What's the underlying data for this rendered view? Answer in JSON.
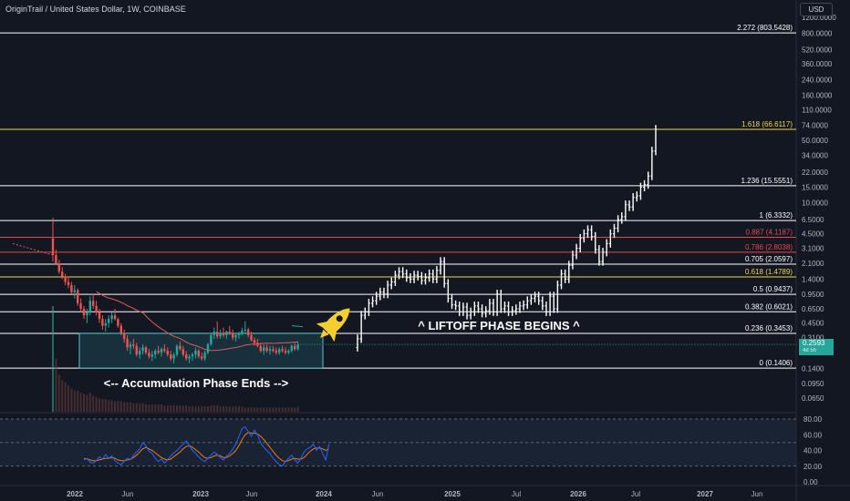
{
  "header": {
    "title": "OriginTrail / United States Dollar, 1W, COINBASE",
    "currency_button": "USD"
  },
  "price_tag": {
    "price": "0.2593",
    "countdown": "4d 5h"
  },
  "colors": {
    "background": "#131722",
    "white_line": "#ffffff",
    "yellow_line": "#f0d64b",
    "red_line": "#e5484d",
    "accumulation_box_fill": "#1b3a45",
    "accumulation_box_border": "#5ec8c8",
    "rsi_band_fill": "#1c2637",
    "rsi_line": "#2962ff",
    "rsi_ma": "#f57c00",
    "up_candle": "#26a69a",
    "down_candle": "#ef5350",
    "rocket": "#f5cf2e"
  },
  "chart_data": {
    "type": "candlestick",
    "scale": "log",
    "interval": "1W",
    "x_axis_labels": [
      "2022",
      "Jun",
      "2023",
      "Jun",
      "2024",
      "Jun",
      "2025",
      "Jul",
      "2026",
      "Jul",
      "2027",
      "Jun"
    ],
    "y_axis_labels": [
      "1200.0000",
      "800.0000",
      "520.0000",
      "360.0000",
      "240.0000",
      "160.0000",
      "110.0000",
      "74.0000",
      "50.0000",
      "34.0000",
      "22.0000",
      "15.0000",
      "10.0000",
      "6.5000",
      "4.5000",
      "3.1000",
      "2.1000",
      "1.4000",
      "0.9500",
      "0.6500",
      "0.4500",
      "0.3100",
      "0.2100",
      "0.1400",
      "0.0950",
      "0.0650"
    ],
    "rsi_axis_labels": [
      "80.00",
      "60.00",
      "40.00",
      "20.00",
      "0.00"
    ],
    "fib_levels": [
      {
        "label": "2.272 (803.5428)",
        "value": 803.5428,
        "color": "white"
      },
      {
        "label": "1.618 (66.6117)",
        "value": 66.6117,
        "color": "yellow"
      },
      {
        "label": "1.236 (15.5551)",
        "value": 15.5551,
        "color": "white"
      },
      {
        "label": "1 (6.3332)",
        "value": 6.3332,
        "color": "white"
      },
      {
        "label": "0.887 (4.1187)",
        "value": 4.1187,
        "color": "red"
      },
      {
        "label": "0.786 (2.8038)",
        "value": 2.8038,
        "color": "red"
      },
      {
        "label": "0.705 (2.0597)",
        "value": 2.0597,
        "color": "white"
      },
      {
        "label": "0.618 (1.4789)",
        "value": 1.4789,
        "color": "yellow"
      },
      {
        "label": "0.5 (0.9437)",
        "value": 0.9437,
        "color": "white"
      },
      {
        "label": "0.382 (0.6021)",
        "value": 0.6021,
        "color": "white"
      },
      {
        "label": "0.236 (0.3453)",
        "value": 0.3453,
        "color": "white"
      },
      {
        "label": "0 (0.1406)",
        "value": 0.1406,
        "color": "white"
      }
    ],
    "annotations": {
      "accumulation": "<-- Accumulation Phase Ends -->",
      "liftoff": "^ LIFTOFF PHASE BEGINS ^"
    },
    "accumulation_box": {
      "price_low": 0.1406,
      "price_high": 0.3453
    },
    "historical_candles": [
      [
        4.0,
        6.8,
        2.2,
        2.6
      ],
      [
        2.6,
        3.0,
        2.0,
        2.1
      ],
      [
        2.1,
        2.3,
        1.6,
        1.7
      ],
      [
        1.7,
        1.9,
        1.4,
        1.5
      ],
      [
        1.5,
        1.6,
        1.2,
        1.3
      ],
      [
        1.3,
        1.5,
        1.1,
        1.2
      ],
      [
        1.2,
        1.3,
        0.95,
        1.0
      ],
      [
        1.0,
        1.2,
        0.85,
        1.05
      ],
      [
        1.05,
        1.1,
        0.7,
        0.75
      ],
      [
        0.75,
        0.85,
        0.6,
        0.65
      ],
      [
        0.65,
        0.7,
        0.5,
        0.55
      ],
      [
        0.55,
        0.65,
        0.45,
        0.6
      ],
      [
        0.6,
        0.9,
        0.55,
        0.8
      ],
      [
        0.8,
        0.95,
        0.65,
        0.7
      ],
      [
        0.7,
        0.8,
        0.55,
        0.6
      ],
      [
        0.6,
        0.65,
        0.45,
        0.5
      ],
      [
        0.5,
        0.55,
        0.38,
        0.42
      ],
      [
        0.42,
        0.5,
        0.36,
        0.45
      ],
      [
        0.45,
        0.55,
        0.4,
        0.5
      ],
      [
        0.5,
        0.6,
        0.45,
        0.55
      ],
      [
        0.55,
        0.65,
        0.48,
        0.5
      ],
      [
        0.5,
        0.52,
        0.4,
        0.42
      ],
      [
        0.42,
        0.45,
        0.33,
        0.35
      ],
      [
        0.35,
        0.38,
        0.27,
        0.3
      ],
      [
        0.3,
        0.33,
        0.22,
        0.24
      ],
      [
        0.24,
        0.28,
        0.2,
        0.26
      ],
      [
        0.26,
        0.3,
        0.23,
        0.25
      ],
      [
        0.25,
        0.27,
        0.19,
        0.2
      ],
      [
        0.2,
        0.24,
        0.18,
        0.22
      ],
      [
        0.22,
        0.26,
        0.2,
        0.24
      ],
      [
        0.24,
        0.25,
        0.2,
        0.21
      ],
      [
        0.21,
        0.23,
        0.18,
        0.19
      ],
      [
        0.19,
        0.22,
        0.17,
        0.2
      ],
      [
        0.2,
        0.23,
        0.18,
        0.22
      ],
      [
        0.22,
        0.25,
        0.2,
        0.21
      ],
      [
        0.21,
        0.24,
        0.19,
        0.23
      ],
      [
        0.23,
        0.26,
        0.21,
        0.22
      ],
      [
        0.22,
        0.24,
        0.19,
        0.2
      ],
      [
        0.2,
        0.22,
        0.17,
        0.18
      ],
      [
        0.18,
        0.21,
        0.16,
        0.2
      ],
      [
        0.2,
        0.26,
        0.19,
        0.25
      ],
      [
        0.25,
        0.28,
        0.22,
        0.23
      ],
      [
        0.23,
        0.25,
        0.19,
        0.2
      ],
      [
        0.2,
        0.22,
        0.17,
        0.18
      ],
      [
        0.18,
        0.2,
        0.16,
        0.19
      ],
      [
        0.19,
        0.21,
        0.17,
        0.2
      ],
      [
        0.2,
        0.24,
        0.18,
        0.22
      ],
      [
        0.22,
        0.23,
        0.18,
        0.19
      ],
      [
        0.19,
        0.21,
        0.17,
        0.18
      ],
      [
        0.18,
        0.22,
        0.17,
        0.21
      ],
      [
        0.21,
        0.27,
        0.2,
        0.26
      ],
      [
        0.26,
        0.34,
        0.25,
        0.33
      ],
      [
        0.33,
        0.4,
        0.3,
        0.36
      ],
      [
        0.36,
        0.47,
        0.3,
        0.32
      ],
      [
        0.32,
        0.38,
        0.3,
        0.35
      ],
      [
        0.35,
        0.4,
        0.31,
        0.33
      ],
      [
        0.33,
        0.37,
        0.3,
        0.36
      ],
      [
        0.36,
        0.42,
        0.33,
        0.34
      ],
      [
        0.34,
        0.38,
        0.29,
        0.31
      ],
      [
        0.31,
        0.35,
        0.28,
        0.33
      ],
      [
        0.33,
        0.36,
        0.3,
        0.35
      ],
      [
        0.35,
        0.4,
        0.33,
        0.37
      ],
      [
        0.37,
        0.47,
        0.34,
        0.38
      ],
      [
        0.38,
        0.4,
        0.31,
        0.33
      ],
      [
        0.33,
        0.36,
        0.28,
        0.29
      ],
      [
        0.29,
        0.31,
        0.25,
        0.27
      ],
      [
        0.27,
        0.3,
        0.24,
        0.25
      ],
      [
        0.25,
        0.27,
        0.21,
        0.22
      ],
      [
        0.22,
        0.26,
        0.2,
        0.24
      ],
      [
        0.24,
        0.26,
        0.21,
        0.22
      ],
      [
        0.22,
        0.25,
        0.2,
        0.23
      ],
      [
        0.23,
        0.25,
        0.21,
        0.22
      ],
      [
        0.22,
        0.24,
        0.2,
        0.21
      ],
      [
        0.21,
        0.24,
        0.2,
        0.23
      ],
      [
        0.23,
        0.25,
        0.21,
        0.22
      ],
      [
        0.22,
        0.24,
        0.2,
        0.21
      ],
      [
        0.21,
        0.23,
        0.2,
        0.22
      ],
      [
        0.22,
        0.26,
        0.21,
        0.25
      ],
      [
        0.25,
        0.27,
        0.22,
        0.23
      ],
      [
        0.23,
        0.28,
        0.22,
        0.2593
      ]
    ],
    "projected_path": [
      0.3,
      0.55,
      0.6,
      0.75,
      0.8,
      0.9,
      1.0,
      0.95,
      1.2,
      1.3,
      1.55,
      1.7,
      1.6,
      1.45,
      1.4,
      1.55,
      1.5,
      1.35,
      1.45,
      1.6,
      1.4,
      1.75,
      2.2,
      1.25,
      0.85,
      0.72,
      0.7,
      0.6,
      0.68,
      0.55,
      0.6,
      0.7,
      0.65,
      0.58,
      0.62,
      0.75,
      0.6,
      0.95,
      0.65,
      0.7,
      0.6,
      0.62,
      0.65,
      0.7,
      0.72,
      0.8,
      0.85,
      0.9,
      0.8,
      0.7,
      0.6,
      0.9,
      0.65,
      1.2,
      1.6,
      1.4,
      2.0,
      2.6,
      3.1,
      4.0,
      4.5,
      5.0,
      4.2,
      3.0,
      2.2,
      2.8,
      3.5,
      4.5,
      5.2,
      6.5,
      7.0,
      9.5,
      9.0,
      11.5,
      12.0,
      15.0,
      16.0,
      20.0,
      38.0,
      66.6
    ],
    "rsi_values": [
      28,
      30,
      25,
      24,
      27,
      32,
      29,
      35,
      30,
      33,
      27,
      24,
      22,
      26,
      30,
      28,
      34,
      38,
      42,
      50,
      46,
      39,
      36,
      30,
      26,
      29,
      24,
      28,
      33,
      37,
      40,
      44,
      48,
      52,
      46,
      40,
      36,
      32,
      28,
      26,
      30,
      34,
      38,
      35,
      31,
      28,
      33,
      36,
      42,
      48,
      58,
      68,
      70,
      64,
      58,
      66,
      60,
      50,
      44,
      40,
      36,
      30,
      26,
      22,
      20,
      26,
      30,
      34,
      28,
      24,
      30,
      38,
      42,
      44,
      48,
      40,
      45,
      36,
      28,
      48
    ],
    "rsi_ma_values": [
      30,
      29,
      28,
      27,
      27,
      28,
      29,
      30,
      30,
      31,
      30,
      28,
      27,
      27,
      28,
      29,
      31,
      34,
      38,
      42,
      44,
      42,
      40,
      37,
      34,
      31,
      29,
      28,
      29,
      32,
      35,
      38,
      42,
      45,
      46,
      44,
      41,
      38,
      34,
      31,
      30,
      31,
      33,
      34,
      33,
      31,
      31,
      33,
      36,
      40,
      46,
      54,
      60,
      63,
      62,
      62,
      61,
      58,
      54,
      49,
      44,
      39,
      34,
      30,
      27,
      26,
      27,
      29,
      30,
      29,
      29,
      31,
      35,
      39,
      42,
      43,
      43,
      42,
      40,
      42
    ],
    "volume_relative": [
      1.0,
      0.5,
      0.35,
      0.3,
      0.28,
      0.25,
      0.22,
      0.2,
      0.2,
      0.18,
      0.17,
      0.16,
      0.18,
      0.15,
      0.14,
      0.13,
      0.12,
      0.12,
      0.11,
      0.11,
      0.1,
      0.1,
      0.1,
      0.09,
      0.09,
      0.09,
      0.08,
      0.08,
      0.08,
      0.08,
      0.07,
      0.07,
      0.07,
      0.07,
      0.07,
      0.07,
      0.06,
      0.06,
      0.06,
      0.06,
      0.06,
      0.06,
      0.06,
      0.06,
      0.05,
      0.05,
      0.05,
      0.05,
      0.05,
      0.05,
      0.05,
      0.06,
      0.06,
      0.06,
      0.05,
      0.05,
      0.05,
      0.05,
      0.05,
      0.05,
      0.05,
      0.05,
      0.04,
      0.04,
      0.04,
      0.04,
      0.04,
      0.04,
      0.04,
      0.04,
      0.04,
      0.04,
      0.04,
      0.04,
      0.04,
      0.04,
      0.04,
      0.04,
      0.04,
      0.05
    ]
  }
}
